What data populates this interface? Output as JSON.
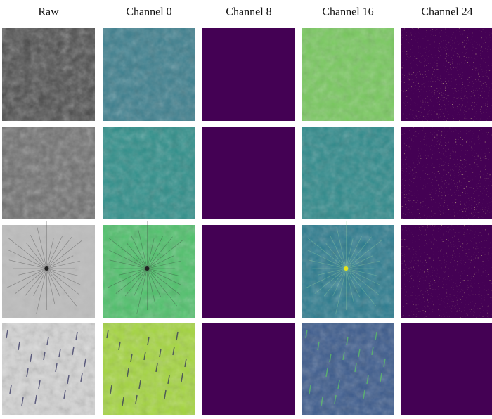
{
  "columns": [
    "Raw",
    "Channel 0",
    "Channel 8",
    "Channel 16",
    "Channel 24"
  ]
}
